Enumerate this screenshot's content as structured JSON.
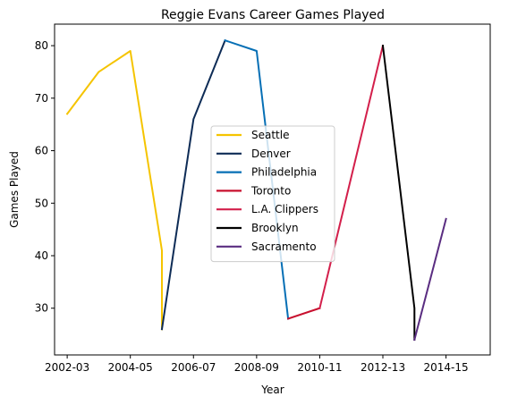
{
  "chart_data": {
    "type": "line",
    "title": "Reggie Evans Career Games Played",
    "xlabel": "Year",
    "ylabel": "Games Played",
    "xticks": [
      "2002-03",
      "2004-05",
      "2006-07",
      "2008-09",
      "2010-11",
      "2012-13",
      "2014-15"
    ],
    "yticks": [
      30,
      40,
      50,
      60,
      70,
      80
    ],
    "xlim": [
      2001.6,
      2015.4
    ],
    "ylim": [
      21.1,
      84.1
    ],
    "grid": false,
    "legend_position": "center",
    "series": [
      {
        "name": "Seattle",
        "color": "#F5C400",
        "points": [
          [
            2002,
            67
          ],
          [
            2003,
            75
          ],
          [
            2004,
            79
          ],
          [
            2005,
            41
          ],
          [
            2005,
            26
          ]
        ]
      },
      {
        "name": "Denver",
        "color": "#0E2C56",
        "points": [
          [
            2005,
            26
          ],
          [
            2006,
            66
          ],
          [
            2007,
            81
          ]
        ]
      },
      {
        "name": "Philadelphia",
        "color": "#066FB5",
        "points": [
          [
            2007,
            81
          ],
          [
            2008,
            79
          ],
          [
            2009,
            28
          ]
        ]
      },
      {
        "name": "Toronto",
        "color": "#C8102E",
        "points": [
          [
            2009,
            28
          ],
          [
            2010,
            30
          ]
        ]
      },
      {
        "name": "L.A. Clippers",
        "color": "#D31F4B",
        "points": [
          [
            2010,
            30
          ],
          [
            2012,
            80
          ]
        ]
      },
      {
        "name": "Brooklyn",
        "color": "#000000",
        "points": [
          [
            2012,
            80
          ],
          [
            2013,
            30
          ],
          [
            2013,
            24
          ]
        ]
      },
      {
        "name": "Sacramento",
        "color": "#5A2D81",
        "points": [
          [
            2013,
            24
          ],
          [
            2014,
            47
          ]
        ]
      }
    ]
  }
}
